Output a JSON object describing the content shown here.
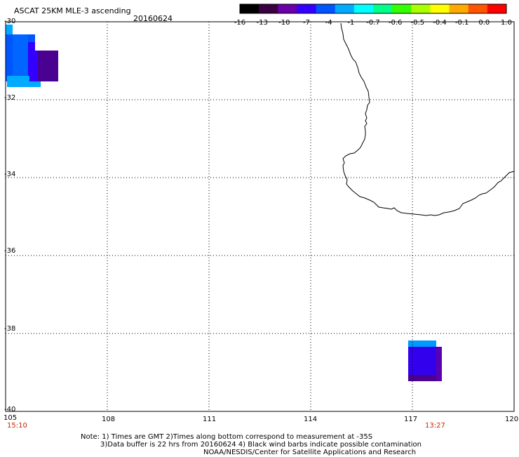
{
  "header": {
    "title": "ASCAT 25KM MLE-3 ascending",
    "date": "20160624"
  },
  "colorbar": {
    "labels": [
      "-16",
      "-13",
      "-10",
      "-7",
      "-4",
      "-1",
      "-0.7",
      "-0.6",
      "-0.5",
      "-0.4",
      "-0.1",
      "0.0",
      "1.0"
    ],
    "colors": [
      "#000000",
      "#3a0040",
      "#6a00a8",
      "#3300ff",
      "#0055ff",
      "#00aaff",
      "#00ffff",
      "#00ff88",
      "#33ff00",
      "#aaff00",
      "#ffff00",
      "#ffaa00",
      "#ff5500",
      "#ff0000"
    ]
  },
  "map": {
    "lon_labels": [
      "105",
      "108",
      "111",
      "114",
      "117",
      "120"
    ],
    "lat_labels": [
      "-30",
      "-32",
      "-34",
      "-36",
      "-38",
      "-40"
    ],
    "time_labels": [
      "15:10",
      "13:27"
    ],
    "lon_range": [
      105,
      120
    ],
    "lat_range": [
      -40,
      -30
    ]
  },
  "notes": {
    "line1": "Note: 1) Times are GMT 2)Times along bottom correspond to measurement at -35S",
    "line2": "3)Data buffer is 22 hrs from 20160624 4) Black wind barbs indicate possible contamination",
    "line3": "NOAA/NESDIS/Center for Satellite Applications and Research"
  }
}
